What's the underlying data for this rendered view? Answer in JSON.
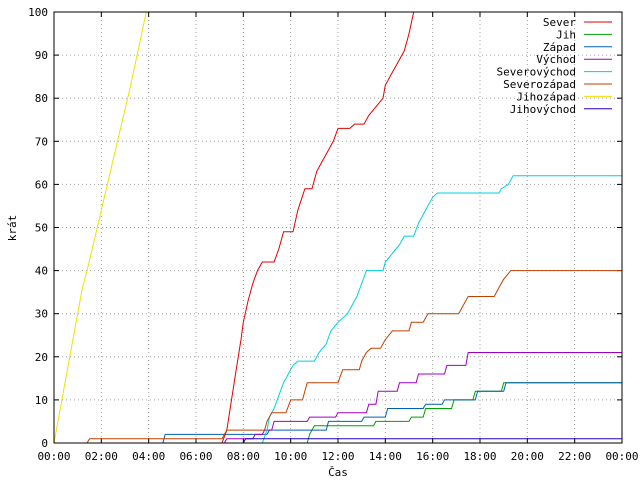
{
  "chart_data": {
    "type": "line",
    "xlabel": "Čas",
    "ylabel": "krát",
    "xlim": [
      0,
      24
    ],
    "ylim": [
      0,
      100
    ],
    "grid": true,
    "legend_position": "top-right",
    "x_ticks": [
      0,
      2,
      4,
      6,
      8,
      10,
      12,
      14,
      16,
      18,
      20,
      22,
      24
    ],
    "x_tick_labels": [
      "00:00",
      "02:00",
      "04:00",
      "06:00",
      "08:00",
      "10:00",
      "12:00",
      "14:00",
      "16:00",
      "18:00",
      "20:00",
      "22:00",
      "00:00"
    ],
    "y_ticks": [
      0,
      10,
      20,
      30,
      40,
      50,
      60,
      70,
      80,
      90,
      100
    ],
    "y_tick_labels": [
      "0",
      "10",
      "20",
      "30",
      "40",
      "50",
      "60",
      "70",
      "80",
      "90",
      "100"
    ],
    "series": [
      {
        "name": "Sever",
        "color": "#e00000",
        "points": [
          [
            0,
            0
          ],
          [
            7.1,
            0
          ],
          [
            7.3,
            3
          ],
          [
            7.5,
            10
          ],
          [
            7.7,
            17
          ],
          [
            7.9,
            24
          ],
          [
            8.0,
            28
          ],
          [
            8.2,
            33
          ],
          [
            8.4,
            37
          ],
          [
            8.6,
            40
          ],
          [
            8.8,
            42
          ],
          [
            9.3,
            42
          ],
          [
            9.5,
            45
          ],
          [
            9.7,
            49
          ],
          [
            10.1,
            49
          ],
          [
            10.3,
            54
          ],
          [
            10.6,
            59
          ],
          [
            10.9,
            59
          ],
          [
            11.1,
            63
          ],
          [
            11.3,
            65
          ],
          [
            11.5,
            67
          ],
          [
            11.8,
            70
          ],
          [
            12.0,
            73
          ],
          [
            12.5,
            73
          ],
          [
            12.7,
            74
          ],
          [
            13.1,
            74
          ],
          [
            13.3,
            76
          ],
          [
            13.6,
            78
          ],
          [
            13.9,
            80
          ],
          [
            14.0,
            83
          ],
          [
            14.3,
            86
          ],
          [
            14.5,
            88
          ],
          [
            14.8,
            91
          ],
          [
            15.0,
            95
          ],
          [
            15.2,
            100
          ]
        ]
      },
      {
        "name": "Jih",
        "color": "#00a000",
        "points": [
          [
            0,
            0
          ],
          [
            10.7,
            0
          ],
          [
            10.8,
            2
          ],
          [
            11.0,
            4
          ],
          [
            12.0,
            4
          ],
          [
            12.1,
            4
          ],
          [
            13.5,
            4
          ],
          [
            13.6,
            5
          ],
          [
            15.0,
            5
          ],
          [
            15.1,
            6
          ],
          [
            15.6,
            6
          ],
          [
            15.7,
            8
          ],
          [
            16.8,
            8
          ],
          [
            16.9,
            10
          ],
          [
            17.7,
            10
          ],
          [
            17.8,
            12
          ],
          [
            18.9,
            12
          ],
          [
            19.0,
            14
          ],
          [
            24,
            14
          ]
        ]
      },
      {
        "name": "Západ",
        "color": "#0060b0",
        "points": [
          [
            0,
            0
          ],
          [
            4.6,
            0
          ],
          [
            4.7,
            2
          ],
          [
            9.0,
            2
          ],
          [
            9.1,
            3
          ],
          [
            11.5,
            3
          ],
          [
            11.6,
            5
          ],
          [
            13.0,
            5
          ],
          [
            13.1,
            6
          ],
          [
            14.0,
            6
          ],
          [
            14.1,
            8
          ],
          [
            15.6,
            8
          ],
          [
            15.7,
            9
          ],
          [
            16.4,
            9
          ],
          [
            16.5,
            10
          ],
          [
            17.8,
            10
          ],
          [
            17.9,
            12
          ],
          [
            19.0,
            12
          ],
          [
            19.1,
            14
          ],
          [
            24,
            14
          ]
        ]
      },
      {
        "name": "Východ",
        "color": "#a000c0",
        "points": [
          [
            0,
            0
          ],
          [
            7.2,
            0
          ],
          [
            7.3,
            1
          ],
          [
            8.4,
            1
          ],
          [
            8.5,
            2
          ],
          [
            8.8,
            2
          ],
          [
            8.9,
            3
          ],
          [
            9.2,
            3
          ],
          [
            9.3,
            5
          ],
          [
            10.7,
            5
          ],
          [
            10.8,
            6
          ],
          [
            11.9,
            6
          ],
          [
            12.0,
            7
          ],
          [
            13.2,
            7
          ],
          [
            13.3,
            9
          ],
          [
            13.6,
            9
          ],
          [
            13.7,
            12
          ],
          [
            14.5,
            12
          ],
          [
            14.6,
            14
          ],
          [
            15.3,
            14
          ],
          [
            15.4,
            16
          ],
          [
            16.5,
            16
          ],
          [
            16.6,
            18
          ],
          [
            17.4,
            18
          ],
          [
            17.5,
            21
          ],
          [
            24,
            21
          ]
        ]
      },
      {
        "name": "Severovýchod",
        "color": "#00d0e0",
        "points": [
          [
            0,
            0
          ],
          [
            8.8,
            0
          ],
          [
            9.0,
            3
          ],
          [
            9.1,
            6
          ],
          [
            9.3,
            8
          ],
          [
            9.5,
            11
          ],
          [
            9.7,
            14
          ],
          [
            9.9,
            16
          ],
          [
            10.1,
            18
          ],
          [
            10.3,
            19
          ],
          [
            11.0,
            19
          ],
          [
            11.2,
            21
          ],
          [
            11.5,
            23
          ],
          [
            11.7,
            26
          ],
          [
            12.0,
            28
          ],
          [
            12.4,
            30
          ],
          [
            12.6,
            32
          ],
          [
            12.8,
            34
          ],
          [
            13.0,
            37
          ],
          [
            13.2,
            40
          ],
          [
            13.9,
            40
          ],
          [
            14.0,
            42
          ],
          [
            14.3,
            44
          ],
          [
            14.6,
            46
          ],
          [
            14.8,
            48
          ],
          [
            15.2,
            48
          ],
          [
            15.4,
            51
          ],
          [
            15.6,
            53
          ],
          [
            15.8,
            55
          ],
          [
            16.0,
            57
          ],
          [
            16.2,
            58
          ],
          [
            18.8,
            58
          ],
          [
            18.9,
            59
          ],
          [
            19.2,
            60
          ],
          [
            19.4,
            62
          ],
          [
            24,
            62
          ]
        ]
      },
      {
        "name": "Severozápad",
        "color": "#c04000",
        "points": [
          [
            0,
            0
          ],
          [
            1.4,
            0
          ],
          [
            1.5,
            1
          ],
          [
            7.1,
            1
          ],
          [
            7.2,
            2
          ],
          [
            7.3,
            3
          ],
          [
            8.9,
            3
          ],
          [
            9.0,
            5
          ],
          [
            9.2,
            7
          ],
          [
            9.8,
            7
          ],
          [
            10.0,
            10
          ],
          [
            10.5,
            10
          ],
          [
            10.7,
            14
          ],
          [
            12.0,
            14
          ],
          [
            12.2,
            17
          ],
          [
            12.9,
            17
          ],
          [
            13.0,
            19
          ],
          [
            13.2,
            21
          ],
          [
            13.4,
            22
          ],
          [
            13.8,
            22
          ],
          [
            14.0,
            24
          ],
          [
            14.3,
            26
          ],
          [
            15.0,
            26
          ],
          [
            15.1,
            28
          ],
          [
            15.6,
            28
          ],
          [
            15.8,
            30
          ],
          [
            17.1,
            30
          ],
          [
            17.3,
            32
          ],
          [
            17.5,
            34
          ],
          [
            18.6,
            34
          ],
          [
            18.8,
            36
          ],
          [
            19.0,
            38
          ],
          [
            19.3,
            40
          ],
          [
            24,
            40
          ]
        ]
      },
      {
        "name": "Jihozápad",
        "color": "#f0e000",
        "points": [
          [
            0,
            0
          ],
          [
            0.6,
            18
          ],
          [
            1.2,
            36
          ],
          [
            1.4,
            40
          ],
          [
            2.0,
            54
          ],
          [
            2.6,
            68
          ],
          [
            3.2,
            82
          ],
          [
            3.9,
            100
          ]
        ]
      },
      {
        "name": "Jihovýchod",
        "color": "#2000c0",
        "points": [
          [
            0,
            0
          ],
          [
            8.0,
            0
          ],
          [
            8.1,
            1
          ],
          [
            24,
            1
          ]
        ]
      }
    ]
  }
}
